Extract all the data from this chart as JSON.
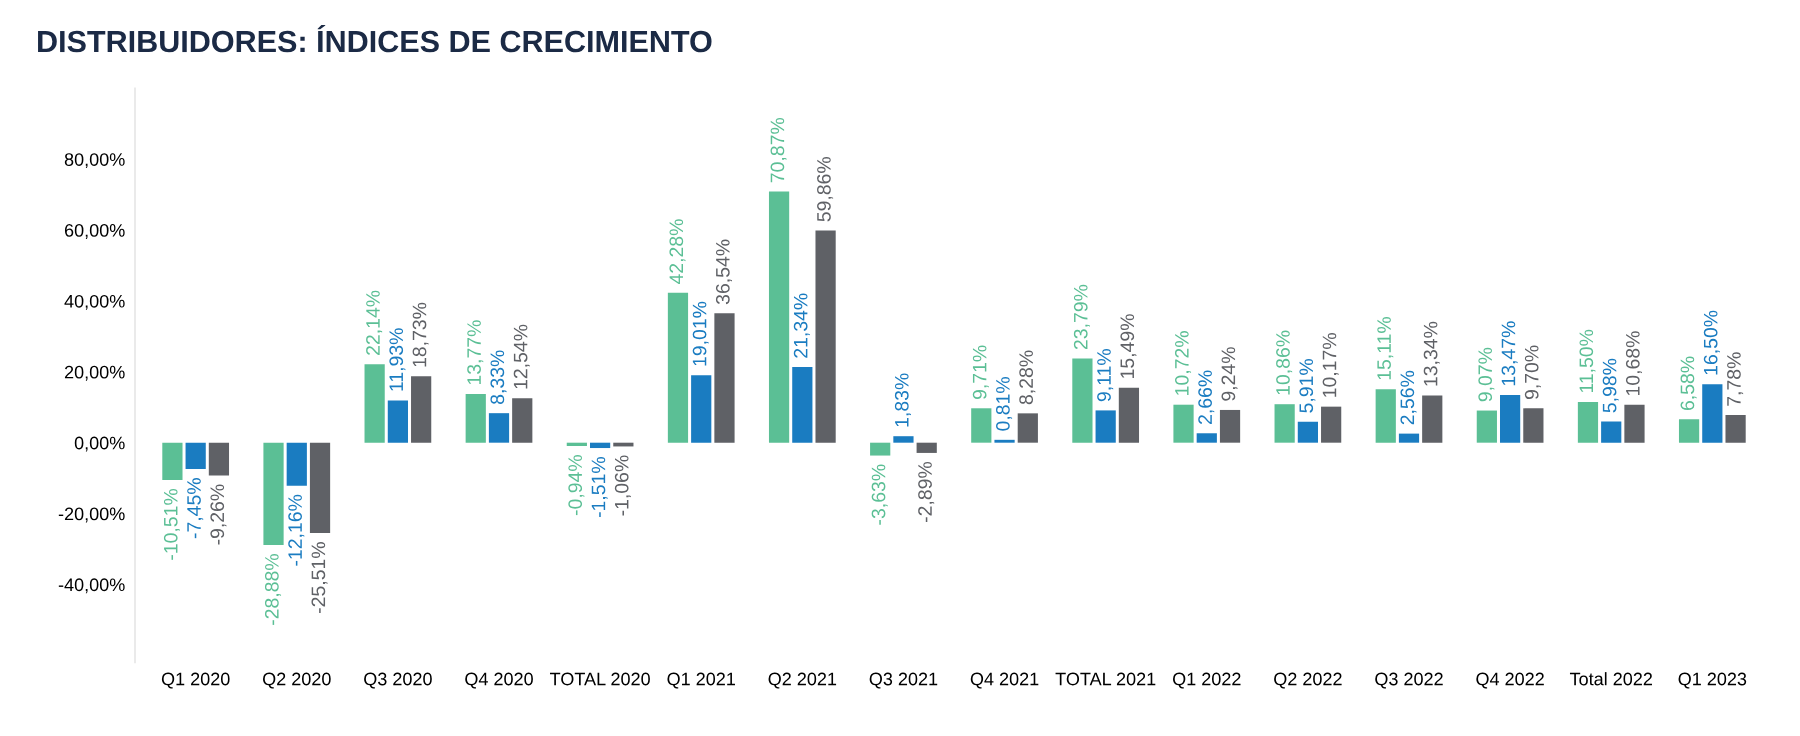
{
  "chart_data": {
    "type": "bar",
    "title": "DISTRIBUIDORES: ÍNDICES DE CRECIMIENTO",
    "categories": [
      "Q1 2020",
      "Q2 2020",
      "Q3 2020",
      "Q4 2020",
      "TOTAL 2020",
      "Q1 2021",
      "Q2 2021",
      "Q3 2021",
      "Q4 2021",
      "TOTAL 2021",
      "Q1 2022",
      "Q2 2022",
      "Q3 2022",
      "Q4 2022",
      "Total 2022",
      "Q1 2023"
    ],
    "series": [
      {
        "color": "#5bbf95",
        "values": [
          -10.51,
          -28.88,
          22.14,
          13.77,
          -0.94,
          42.28,
          70.87,
          -3.63,
          9.71,
          23.79,
          10.72,
          10.86,
          15.11,
          9.07,
          11.5,
          6.58
        ],
        "value_labels": [
          "-10,51%",
          "-28,88%",
          "22,14%",
          "13,77%",
          "-0,94%",
          "42,28%",
          "70,87%",
          "-3,63%",
          "9,71%",
          "23,79%",
          "10,72%",
          "10,86%",
          "15,11%",
          "9,07%",
          "11,50%",
          "6,58%"
        ]
      },
      {
        "color": "#1a7cc1",
        "values": [
          -7.45,
          -12.16,
          11.93,
          8.33,
          -1.51,
          19.01,
          21.34,
          1.83,
          0.81,
          9.11,
          2.66,
          5.91,
          2.56,
          13.47,
          5.98,
          16.5
        ],
        "value_labels": [
          "-7,45%",
          "-12,16%",
          "11,93%",
          "8,33%",
          "-1,51%",
          "19,01%",
          "21,34%",
          "1,83%",
          "0,81%",
          "9,11%",
          "2,66%",
          "5,91%",
          "2,56%",
          "13,47%",
          "5,98%",
          "16,50%"
        ]
      },
      {
        "color": "#5f6166",
        "values": [
          -9.26,
          -25.51,
          18.73,
          12.54,
          -1.06,
          36.54,
          59.86,
          -2.89,
          8.28,
          15.49,
          9.24,
          10.17,
          13.34,
          9.7,
          10.68,
          7.78
        ],
        "value_labels": [
          "-9,26%",
          "-25,51%",
          "18,73%",
          "12,54%",
          "-1,06%",
          "36,54%",
          "59,86%",
          "-2,89%",
          "8,28%",
          "15,49%",
          "9,24%",
          "10,17%",
          "13,34%",
          "9,70%",
          "10,68%",
          "7,78%"
        ]
      }
    ],
    "ylim": [
      -62,
      100
    ],
    "yticks": [
      {
        "value": -40,
        "label": "-40,00%"
      },
      {
        "value": -20,
        "label": "-20,00%"
      },
      {
        "value": 0,
        "label": "0,00%"
      },
      {
        "value": 20,
        "label": "20,00%"
      },
      {
        "value": 40,
        "label": "40,00%"
      },
      {
        "value": 60,
        "label": "60,00%"
      },
      {
        "value": 80,
        "label": "80,00%"
      }
    ],
    "grid": false,
    "legend": false
  }
}
